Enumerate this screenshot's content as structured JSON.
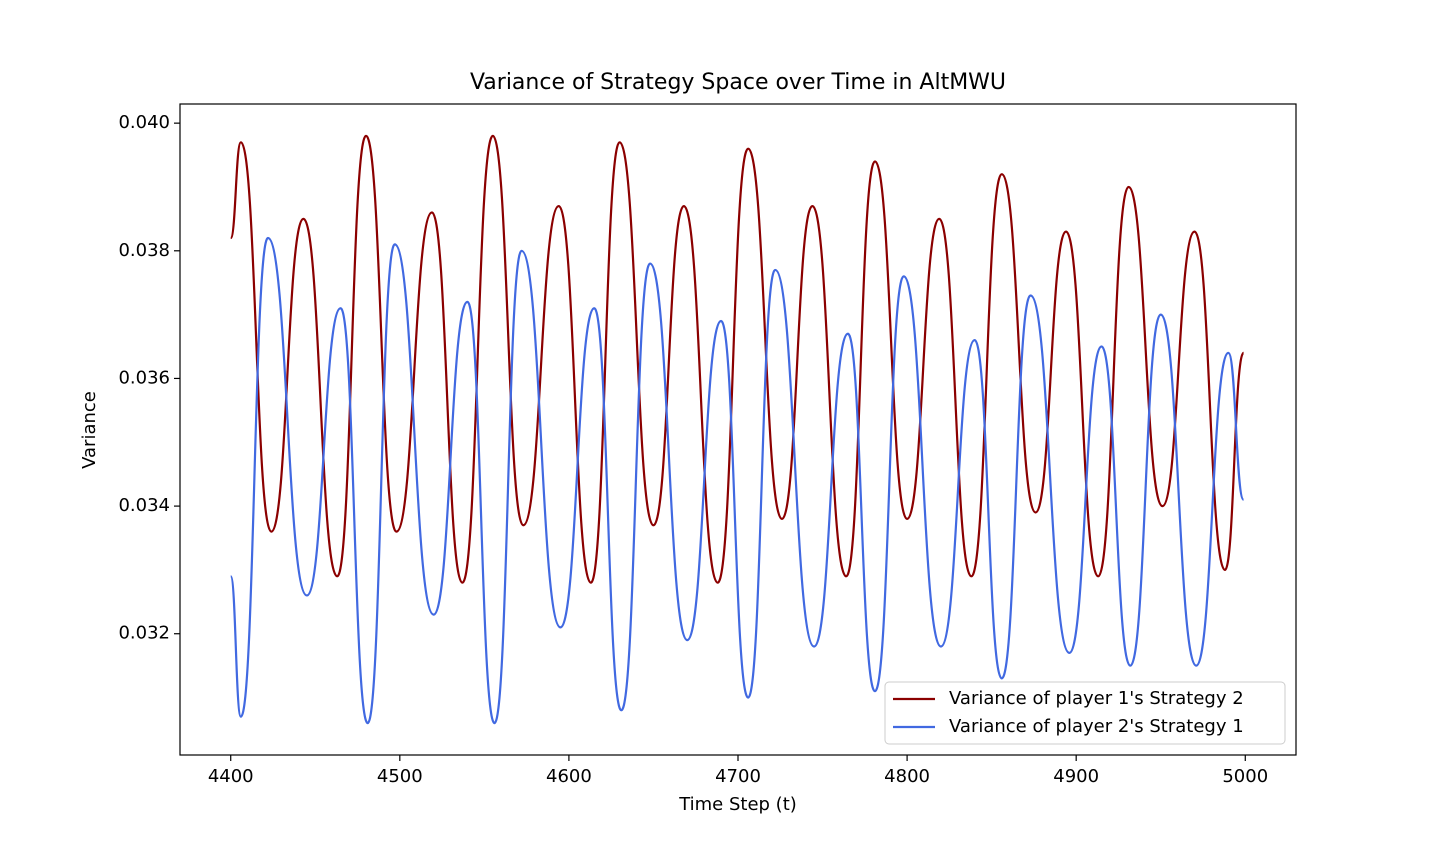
{
  "chart_data": {
    "type": "line",
    "title": "Variance of Strategy Space over Time in AltMWU",
    "xlabel": "Time Step (t)",
    "ylabel": "Variance",
    "xlim": [
      4370,
      5030
    ],
    "xticks": [
      4400,
      4500,
      4600,
      4700,
      4800,
      4900,
      5000
    ],
    "ylim": [
      0.0301,
      0.0403
    ],
    "yticks": [
      0.032,
      0.034,
      0.036,
      0.038,
      {
        "value": 0.04,
        "label": "0.040"
      }
    ],
    "legend": "lower right",
    "series": [
      {
        "name": "Variance of player 1's Strategy 2",
        "color": "#8b0000",
        "x": [
          4400,
          4406,
          4424,
          4443,
          4463,
          4480,
          4498,
          4519,
          4537,
          4555,
          4573,
          4594,
          4613,
          4630,
          4650,
          4668,
          4688,
          4706,
          4726,
          4744,
          4764,
          4781,
          4800,
          4819,
          4838,
          4856,
          4876,
          4894,
          4913,
          4931,
          4951,
          4970,
          4988,
          4999
        ],
        "values": [
          0.0382,
          0.0397,
          0.0336,
          0.0385,
          0.0329,
          0.0398,
          0.0336,
          0.0386,
          0.0328,
          0.0398,
          0.0337,
          0.0387,
          0.0328,
          0.0397,
          0.0337,
          0.0387,
          0.0328,
          0.0396,
          0.0338,
          0.0387,
          0.0329,
          0.0394,
          0.0338,
          0.0385,
          0.0329,
          0.0392,
          0.0339,
          0.0383,
          0.0329,
          0.039,
          0.034,
          0.0383,
          0.033,
          0.0364
        ]
      },
      {
        "name": "Variance of player 2's Strategy 1",
        "color": "#4169e1",
        "x": [
          4400,
          4406,
          4422,
          4445,
          4465,
          4481,
          4497,
          4520,
          4540,
          4556,
          4572,
          4595,
          4615,
          4631,
          4648,
          4670,
          4690,
          4706,
          4722,
          4745,
          4765,
          4781,
          4798,
          4820,
          4840,
          4856,
          4873,
          4896,
          4915,
          4932,
          4950,
          4971,
          4990,
          4999
        ],
        "values": [
          0.0329,
          0.0307,
          0.0382,
          0.0326,
          0.0371,
          0.0306,
          0.0381,
          0.0323,
          0.0372,
          0.0306,
          0.038,
          0.0321,
          0.0371,
          0.0308,
          0.0378,
          0.0319,
          0.0369,
          0.031,
          0.0377,
          0.0318,
          0.0367,
          0.0311,
          0.0376,
          0.0318,
          0.0366,
          0.0313,
          0.0373,
          0.0317,
          0.0365,
          0.0315,
          0.037,
          0.0315,
          0.0364,
          0.0341
        ]
      }
    ]
  }
}
